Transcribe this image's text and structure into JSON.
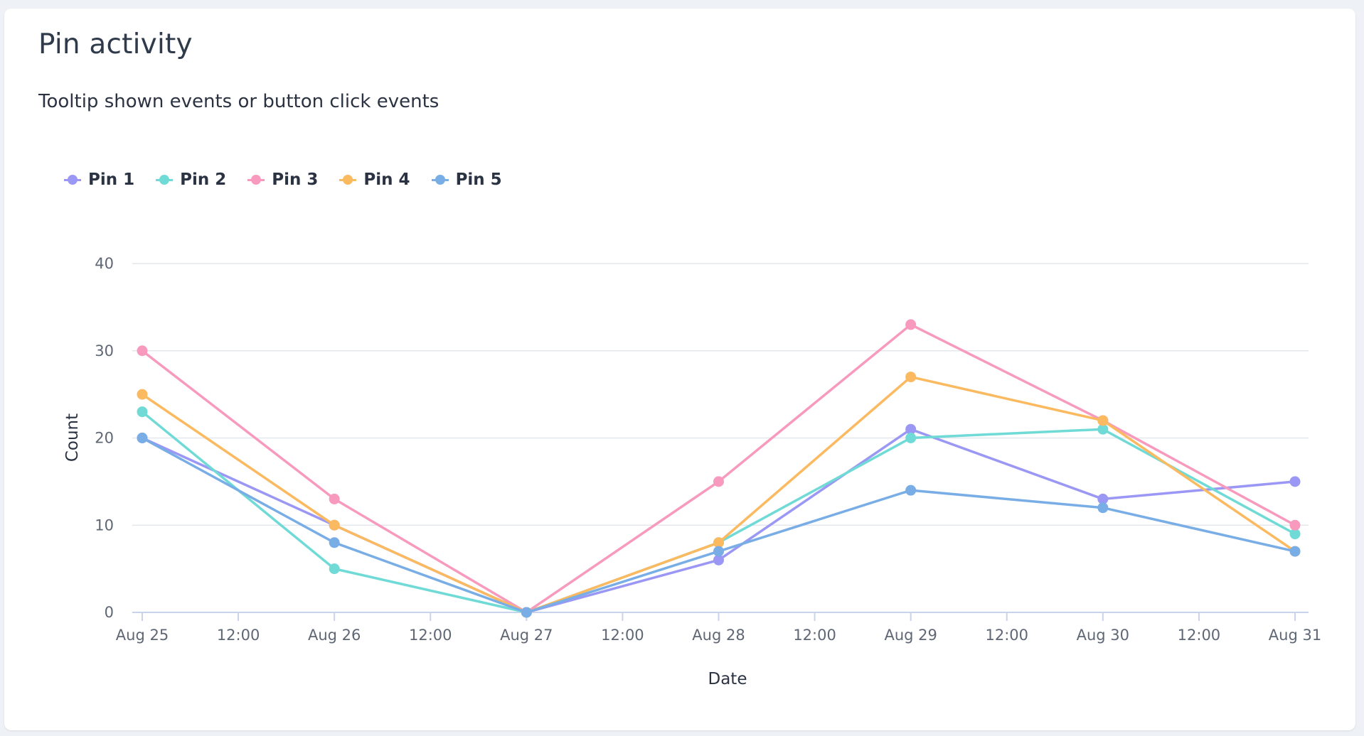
{
  "card": {
    "title": "Pin activity",
    "subtitle": "Tooltip shown events or button click events"
  },
  "chart_data": {
    "type": "line",
    "xlabel": "Date",
    "ylabel": "Count",
    "ylim": [
      0,
      40
    ],
    "yticks": [
      0,
      10,
      20,
      30,
      40
    ],
    "x": [
      "Aug 25",
      "Aug 26",
      "Aug 27",
      "Aug 28",
      "Aug 29",
      "Aug 30",
      "Aug 31"
    ],
    "xtick_labels": [
      "Aug 25",
      "12:00",
      "Aug 26",
      "12:00",
      "Aug 27",
      "12:00",
      "Aug 28",
      "12:00",
      "Aug 29",
      "12:00",
      "Aug 30",
      "12:00",
      "Aug 31"
    ],
    "grid": true,
    "legend_position": "top-left",
    "series": [
      {
        "name": "Pin 1",
        "color": "#9b97f4",
        "values": [
          20,
          10,
          0,
          6,
          21,
          13,
          15
        ]
      },
      {
        "name": "Pin 2",
        "color": "#6fdad6",
        "values": [
          23,
          5,
          0,
          8,
          20,
          21,
          9
        ]
      },
      {
        "name": "Pin 3",
        "color": "#f79abd",
        "values": [
          30,
          13,
          0,
          15,
          33,
          22,
          10
        ]
      },
      {
        "name": "Pin 4",
        "color": "#fbb960",
        "values": [
          25,
          10,
          0,
          8,
          27,
          22,
          7
        ]
      },
      {
        "name": "Pin 5",
        "color": "#78ade6",
        "values": [
          20,
          8,
          0,
          7,
          14,
          12,
          7
        ]
      }
    ],
    "axis_color": "#c8d3ec",
    "grid_color": "#e4e7ec"
  }
}
